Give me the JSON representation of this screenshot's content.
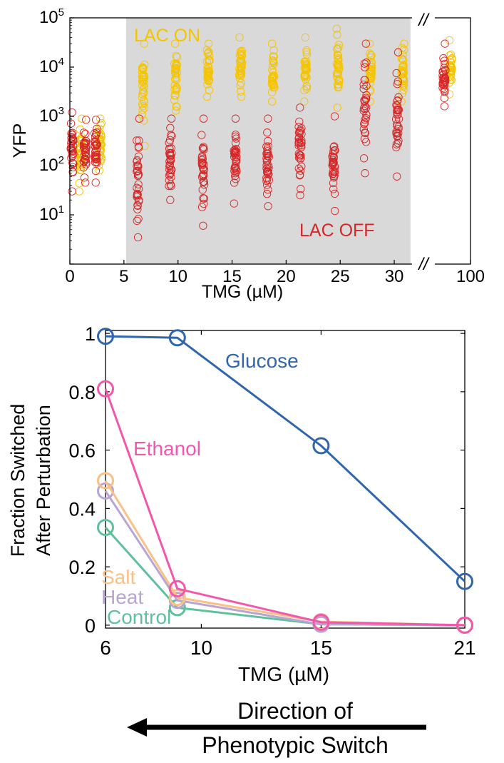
{
  "chart_data": [
    {
      "type": "scatter",
      "xlabel": "TMG (µM)",
      "ylabel": "YFP",
      "y_scale": "log",
      "ylim": [
        1,
        100000
      ],
      "xticks": [
        "0",
        "5",
        "10",
        "15",
        "20",
        "25",
        "30",
        "100"
      ],
      "ytick_base": "10",
      "ytick_exponents": [
        "1",
        "2",
        "3",
        "4",
        "5"
      ],
      "axis_break_mark": "//",
      "shaded_region_x": [
        5.2,
        31.5
      ],
      "region_labels": {
        "on": "LAC ON",
        "off": "LAC OFF"
      },
      "colors": {
        "off": "#d62728",
        "on": "#f5c400",
        "shade": "#d9d9d9"
      },
      "off_cells": [
        {
          "x": 0.2,
          "y_range": [
            30,
            1200
          ]
        },
        {
          "x": 1.4,
          "y_range": [
            45,
            850
          ]
        },
        {
          "x": 2.4,
          "y_range": [
            45,
            850
          ]
        },
        {
          "x": 6.3,
          "y_range": [
            3.5,
            900
          ]
        },
        {
          "x": 9.3,
          "y_range": [
            20,
            900
          ]
        },
        {
          "x": 12.3,
          "y_range": [
            6,
            900
          ]
        },
        {
          "x": 15.3,
          "y_range": [
            17,
            900
          ]
        },
        {
          "x": 18.3,
          "y_range": [
            15,
            900
          ]
        },
        {
          "x": 21.3,
          "y_range": [
            25,
            1500
          ]
        },
        {
          "x": 24.4,
          "y_range": [
            12,
            1000
          ]
        },
        {
          "x": 27.3,
          "y_range": [
            70,
            30000
          ]
        },
        {
          "x": 30.3,
          "y_range": [
            60,
            20000
          ]
        },
        {
          "x": 100,
          "y_range": [
            1600,
            30000
          ],
          "position": "after_break"
        }
      ],
      "on_cells": [
        {
          "x": 1.0,
          "y_range": [
            30,
            900
          ]
        },
        {
          "x": 2.8,
          "y_range": [
            80,
            900
          ]
        },
        {
          "x": 6.8,
          "y_range": [
            250,
            30000
          ]
        },
        {
          "x": 9.8,
          "y_range": [
            1300,
            30000
          ]
        },
        {
          "x": 12.8,
          "y_range": [
            2500,
            30000
          ]
        },
        {
          "x": 15.8,
          "y_range": [
            2500,
            40000
          ]
        },
        {
          "x": 18.8,
          "y_range": [
            2000,
            30000
          ]
        },
        {
          "x": 21.8,
          "y_range": [
            2000,
            40000
          ]
        },
        {
          "x": 24.8,
          "y_range": [
            1500,
            60000
          ]
        },
        {
          "x": 27.8,
          "y_range": [
            2000,
            30000
          ]
        },
        {
          "x": 30.8,
          "y_range": [
            2000,
            30000
          ]
        },
        {
          "x": 100,
          "y_range": [
            2800,
            35000
          ],
          "position": "after_break"
        }
      ]
    },
    {
      "type": "line",
      "xlabel": "TMG (µM)",
      "ylabel_line1": "Fraction Switched",
      "ylabel_line2": "After Perturbation",
      "xlim": [
        6,
        21
      ],
      "ylim": [
        -0.01,
        1.01
      ],
      "xticks": [
        "6",
        "10",
        "15",
        "21"
      ],
      "yticks": [
        "0",
        "0.2",
        "0.4",
        "0.6",
        "0.8",
        "1"
      ],
      "x": [
        6,
        9,
        15,
        21
      ],
      "series": [
        {
          "name": "Glucose",
          "color": "#2f66ad",
          "values": [
            0.99,
            0.985,
            0.615,
            0.15
          ]
        },
        {
          "name": "Ethanol",
          "color": "#f257ac",
          "values": [
            0.81,
            0.125,
            0.01,
            0.0
          ]
        },
        {
          "name": "Salt",
          "color": "#f9c088",
          "values": [
            0.495,
            0.095,
            0.012,
            0.0
          ]
        },
        {
          "name": "Heat",
          "color": "#b8a6d2",
          "values": [
            0.46,
            0.085,
            0.003,
            0.0
          ]
        },
        {
          "name": "Control",
          "color": "#5fc09c",
          "values": [
            0.335,
            0.06,
            0.003,
            0.0
          ]
        }
      ]
    }
  ],
  "annotation": {
    "line1": "Direction of",
    "line2": "Phenotypic Switch"
  }
}
